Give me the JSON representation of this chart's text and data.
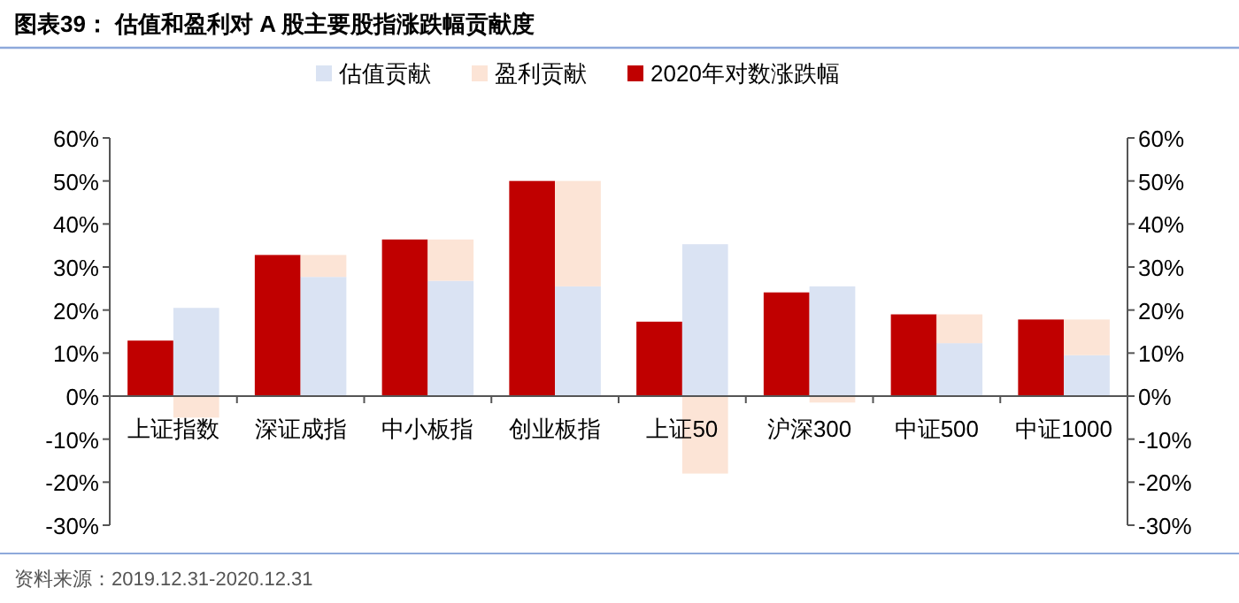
{
  "chart_data": [
    {
      "type": "bar",
      "title": "图表39： 估值和盈利对 A 股主要股指涨跌幅贡献度",
      "categories": [
        null,
        null,
        null,
        null,
        null,
        null,
        null,
        null
      ],
      "tick_labels": "y",
      "series": [
        {
          "name": "2020年对数涨跌幅",
          "color": "#c00000",
          "values": [
            12.9,
            32.8,
            36.4,
            50,
            17.3,
            24.1,
            19,
            17.8
          ]
        }
      ],
      "ylim": [
        -30,
        60
      ],
      "yticks": [
        {
          "value": -30,
          "label": "-30%"
        },
        {
          "value": -20,
          "label": "-20%"
        },
        {
          "value": -10,
          "label": "-10%"
        },
        {
          "value": 0,
          "label": "0%"
        },
        {
          "value": 10,
          "label": "10%"
        },
        {
          "value": 20,
          "label": "20%"
        },
        {
          "value": 30,
          "label": "30%"
        },
        {
          "value": 40,
          "label": "40%"
        },
        {
          "value": 50,
          "label": "50%"
        },
        {
          "value": 60,
          "label": "60%"
        }
      ],
      "y2lim": [
        -30,
        60
      ],
      "y2ticks": [
        {
          "value": -30,
          "label": "-30%"
        },
        {
          "value": -20,
          "label": "-20%"
        },
        {
          "value": -10,
          "label": "-10%"
        },
        {
          "value": 0,
          "label": "0%"
        },
        {
          "value": 10,
          "label": "10%"
        },
        {
          "value": 20,
          "label": "20%"
        },
        {
          "value": 30,
          "label": "30%"
        },
        {
          "value": 40,
          "label": "40%"
        },
        {
          "value": 50,
          "label": "50%"
        },
        {
          "value": 60,
          "label": "60%"
        }
      ],
      "legend": "top",
      "annotations": [
        "资料来源：2019.12.31-2020.12.31"
      ]
    },
    {
      "type": "bar",
      "categories": [
        "上证指数",
        "深证成指",
        "中小板指",
        "创业板指",
        "上证50",
        "沪深300",
        "中证500",
        "中证1000"
      ],
      "stacked": true,
      "series": [
        {
          "name": "估值贡献",
          "color": "#dae3f3",
          "values": [
            20.5,
            27.7,
            26.8,
            25.5,
            35.3,
            25.5,
            12.3,
            9.5
          ]
        },
        {
          "name": "盈利贡献",
          "color": "#fce4d6",
          "values": [
            -5,
            5.1,
            9.6,
            24.5,
            -18,
            -1.5,
            6.7,
            8.3
          ]
        }
      ],
      "ylim": [
        -30,
        60
      ],
      "tick_labels": "x",
      "legend": "top"
    }
  ]
}
